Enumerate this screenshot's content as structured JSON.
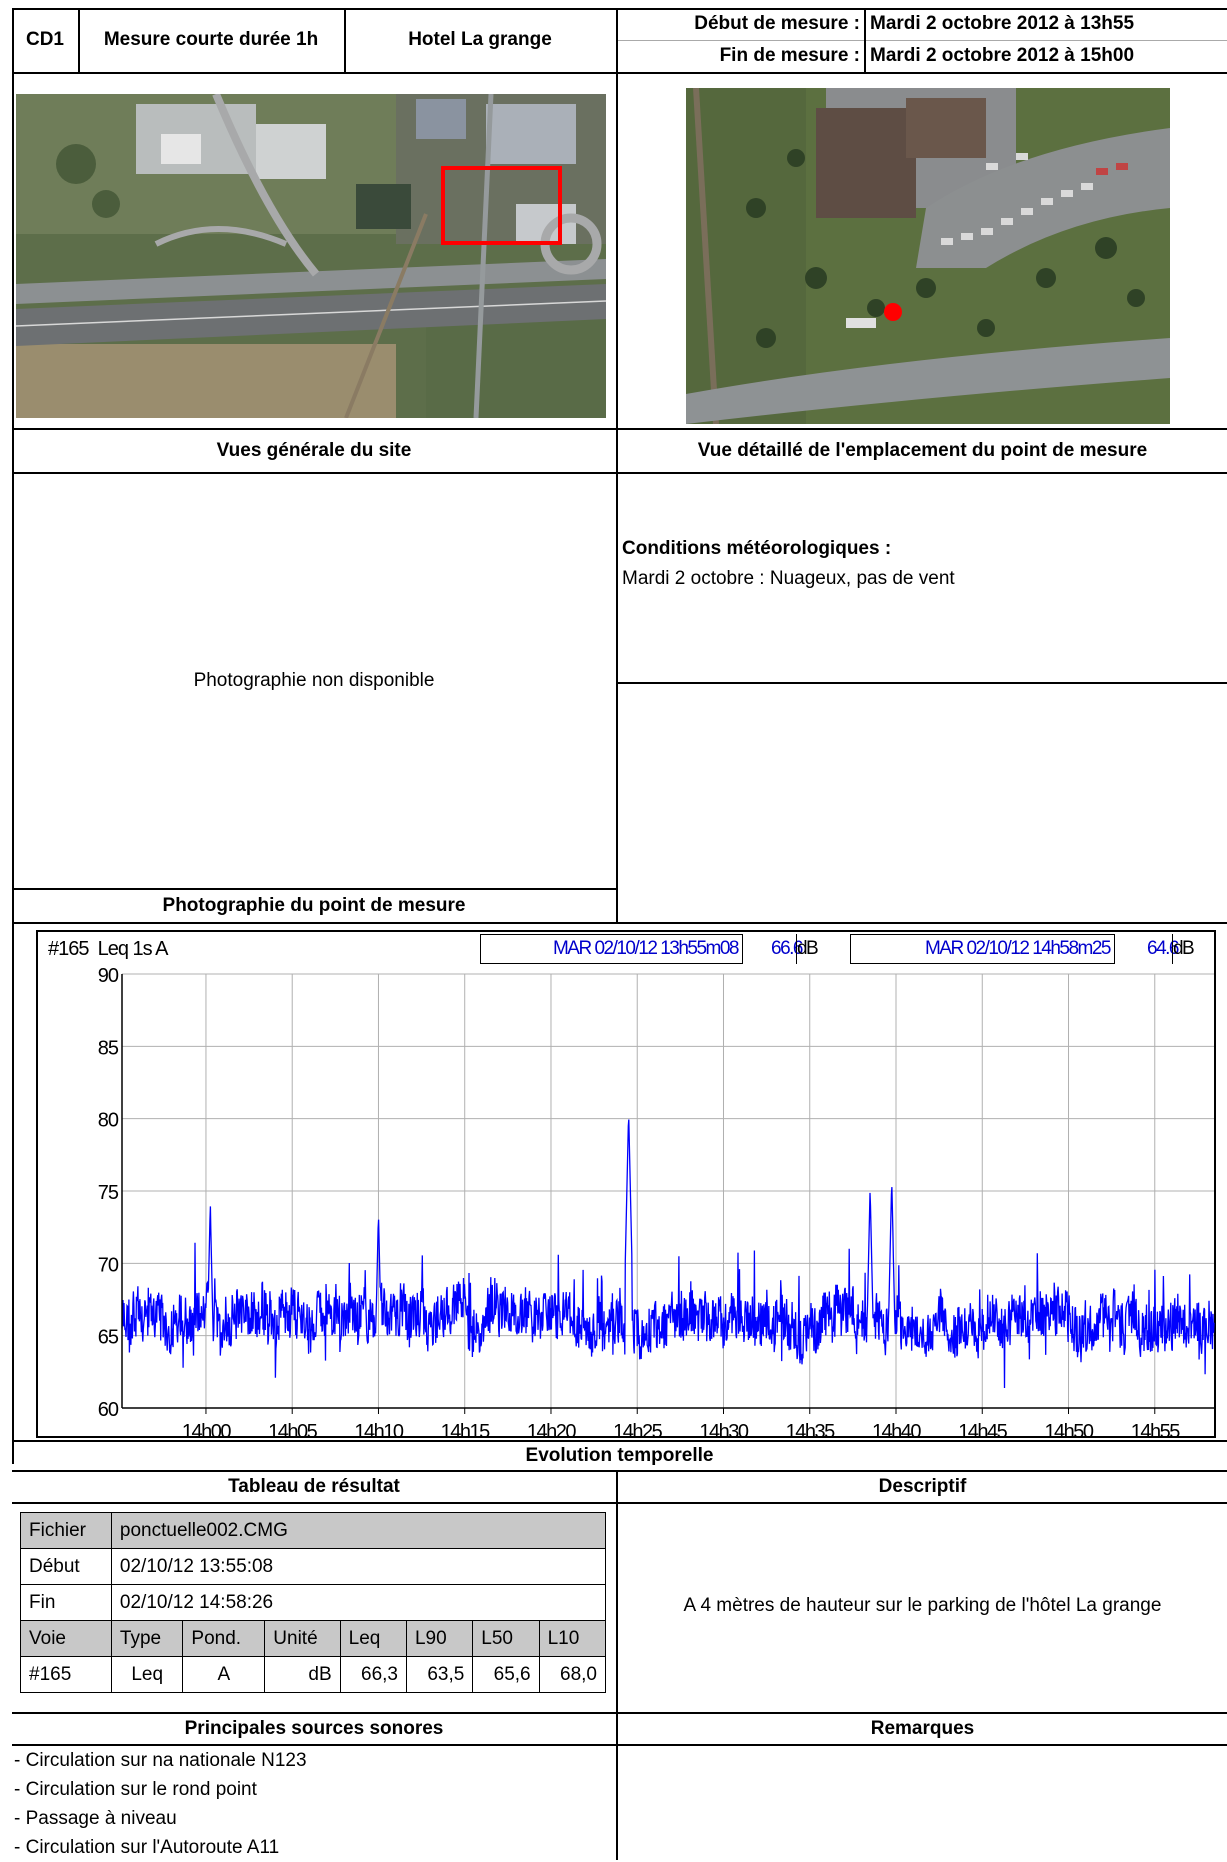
{
  "header": {
    "id": "CD1",
    "type": "Mesure courte durée 1h",
    "site": "Hotel La grange",
    "start_label": "Début de mesure :",
    "start_value": "Mardi 2 octobre 2012 à 13h55",
    "end_label": "Fin de mesure :",
    "end_value": "Mardi 2 octobre 2012 à 15h00"
  },
  "photos": {
    "general_caption": "Vues générale du site",
    "detail_caption": "Vue détaillé de l'emplacement du point de mesure",
    "point_caption": "Photographie du point de mesure",
    "point_placeholder": "Photographie non disponible"
  },
  "weather": {
    "title": "Conditions météorologiques :",
    "text": "Mardi 2 octobre : Nuageux, pas de vent"
  },
  "chart_header": {
    "channel": "#165",
    "measure": "Leq 1s A",
    "start_time": "MAR 02/10/12 13h55m08",
    "start_value": "66.6",
    "start_unit": "dB",
    "end_time": "MAR 02/10/12 14h58m25",
    "end_value": "64.6",
    "end_unit": "dB"
  },
  "chart_data": {
    "type": "line",
    "series_color": "#0000ff",
    "ylim": [
      60,
      90
    ],
    "yticks": [
      "90",
      "85",
      "80",
      "75",
      "70",
      "65",
      "60"
    ],
    "xticks": [
      "14h00",
      "14h05",
      "14h10",
      "14h15",
      "14h20",
      "14h25",
      "14h30",
      "14h35",
      "14h40",
      "14h45",
      "14h50",
      "14h55"
    ],
    "x_start": "13:55:08",
    "x_end": "14:58:26",
    "baseline_db": 66,
    "peaks": [
      {
        "time": "14:00:15",
        "value": 74.2
      },
      {
        "time": "14:10:00",
        "value": 73.5
      },
      {
        "time": "14:24:30",
        "value": 80.5
      },
      {
        "time": "14:39:45",
        "value": 75.8
      },
      {
        "time": "14:38:30",
        "value": 75.2
      }
    ],
    "grid": true
  },
  "chart_caption": "Evolution temporelle",
  "results": {
    "caption": "Tableau de résultat",
    "file_label": "Fichier",
    "file_value": "ponctuelle002.CMG",
    "start_label": "Début",
    "start_value": "02/10/12 13:55:08",
    "end_label": "Fin",
    "end_value": "02/10/12 14:58:26",
    "headers": [
      "Voie",
      "Type",
      "Pond.",
      "Unité",
      "Leq",
      "L90",
      "L50",
      "L10"
    ],
    "row": [
      "#165",
      "Leq",
      "A",
      "dB",
      "66,3",
      "63,5",
      "65,6",
      "68,0"
    ]
  },
  "descriptif": {
    "caption": "Descriptif",
    "text": "A 4 mètres de hauteur sur le parking de l'hôtel La grange"
  },
  "sources": {
    "caption": "Principales sources sonores",
    "items": [
      "- Circulation sur na nationale N123",
      "- Circulation sur le rond point",
      "- Passage à niveau",
      "- Circulation sur l'Autoroute A11"
    ]
  },
  "remarques": {
    "caption": "Remarques"
  }
}
